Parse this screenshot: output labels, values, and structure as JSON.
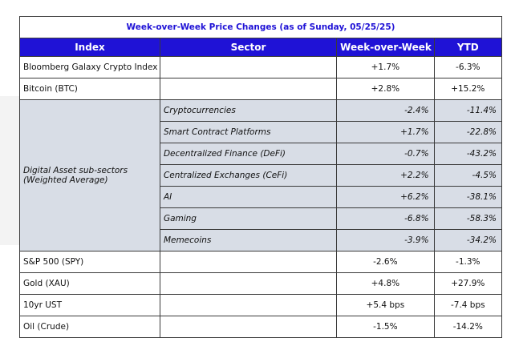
{
  "title": "Week-over-Week Price Changes (as of Sunday, 05/25/25)",
  "headers": {
    "index": "Index",
    "sector": "Sector",
    "wow": "Week-over-Week",
    "ytd": "YTD"
  },
  "top_rows": [
    {
      "index": "Bloomberg Galaxy Crypto Index (BGCI)",
      "sector": "",
      "wow": "+1.7%",
      "ytd": "-6.3%"
    },
    {
      "index": "Bitcoin (BTC)",
      "sector": "",
      "wow": "+2.8%",
      "ytd": "+15.2%"
    }
  ],
  "subsector_group": {
    "label": "Digital Asset sub-sectors (Weighted Average)",
    "rows": [
      {
        "sector": "Cryptocurrencies",
        "wow": "-2.4%",
        "ytd": "-11.4%"
      },
      {
        "sector": "Smart Contract Platforms",
        "wow": "+1.7%",
        "ytd": "-22.8%"
      },
      {
        "sector": "Decentralized Finance (DeFi)",
        "wow": "-0.7%",
        "ytd": "-43.2%"
      },
      {
        "sector": "Centralized Exchanges (CeFi)",
        "wow": "+2.2%",
        "ytd": "-4.5%"
      },
      {
        "sector": "AI",
        "wow": "+6.2%",
        "ytd": "-38.1%"
      },
      {
        "sector": "Gaming",
        "wow": "-6.8%",
        "ytd": "-58.3%"
      },
      {
        "sector": "Memecoins",
        "wow": "-3.9%",
        "ytd": "-34.2%"
      }
    ]
  },
  "bottom_rows": [
    {
      "index": "S&P 500 (SPY)",
      "sector": "",
      "wow": "-2.6%",
      "ytd": "-1.3%"
    },
    {
      "index": "Gold (XAU)",
      "sector": "",
      "wow": "+4.8%",
      "ytd": "+27.9%"
    },
    {
      "index": "10yr UST",
      "sector": "",
      "wow": "+5.4 bps",
      "ytd": "-7.4 bps"
    },
    {
      "index": "Oil (Crude)",
      "sector": "",
      "wow": "-1.5%",
      "ytd": "-14.2%"
    }
  ],
  "colors": {
    "accent": "#1f12d6",
    "subsector_bg": "#d8dde6",
    "border": "#3a3a3a"
  }
}
